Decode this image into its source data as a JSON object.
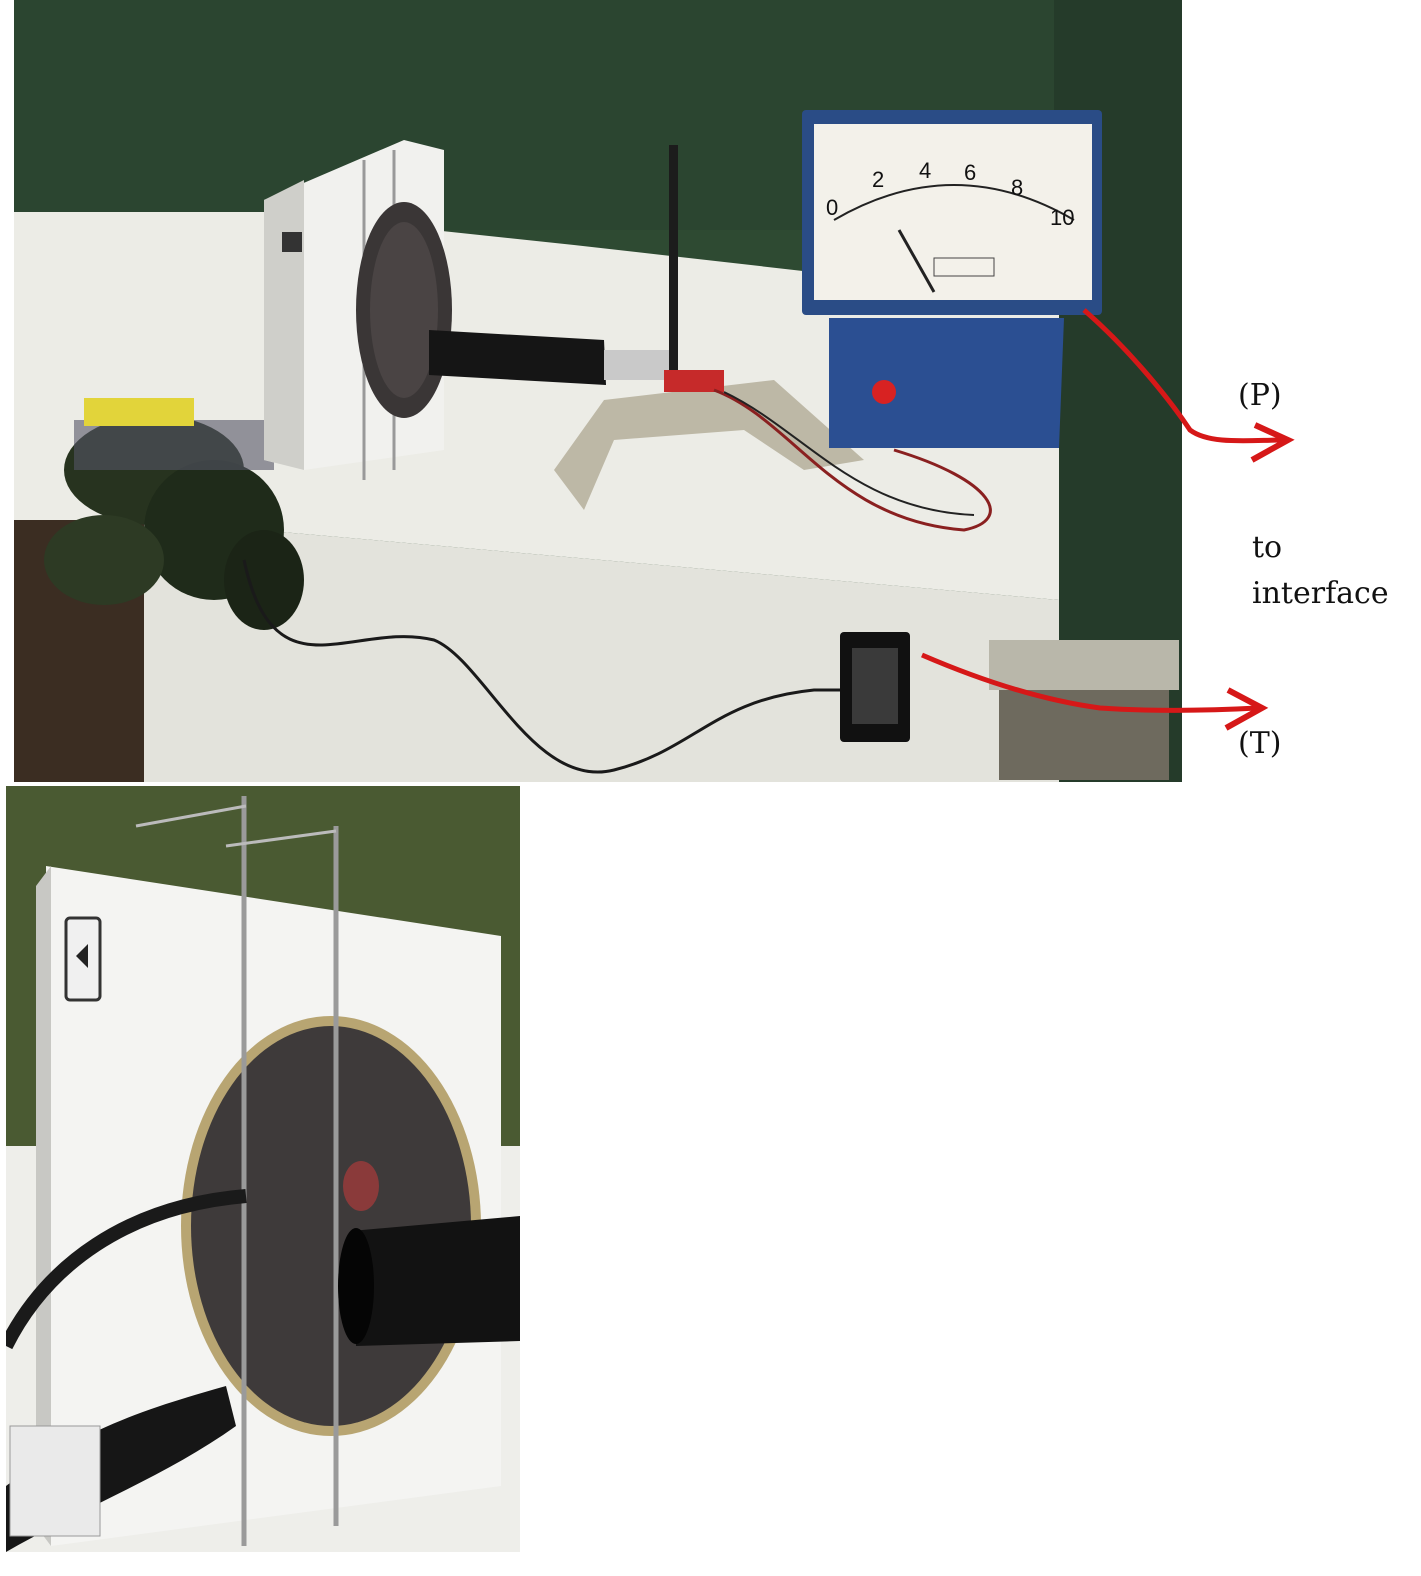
{
  "labels": {
    "p": "(P)",
    "to": "to",
    "interface": "interface",
    "t": "(T)"
  },
  "meter": {
    "scale_numbers": [
      "0",
      "2",
      "4",
      "6",
      "8",
      "10"
    ]
  },
  "colors": {
    "wall_green": "#2e4a32",
    "table_white": "#eeeeea",
    "meter_blue": "#2a4c86",
    "arrow_red": "#d61818",
    "disk_dark": "#3a3636"
  }
}
